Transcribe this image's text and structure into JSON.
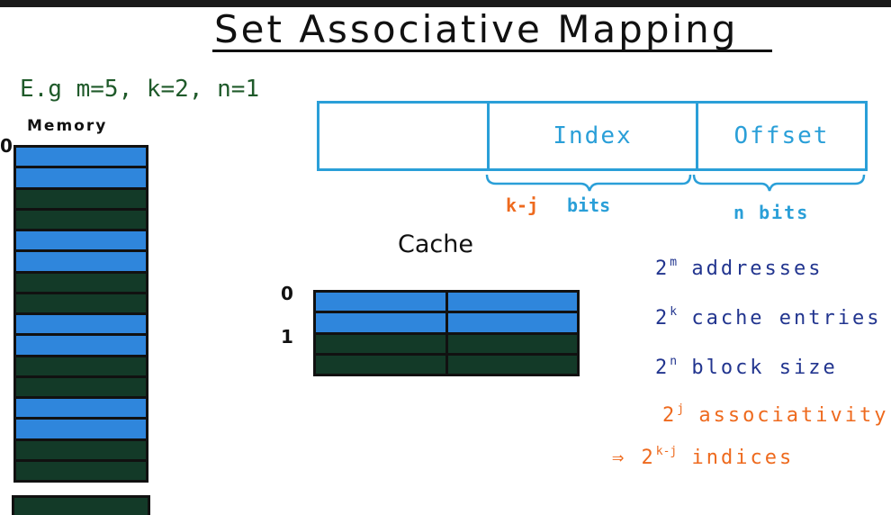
{
  "title": "Set Associative Mapping",
  "example": "E.g m=5, k=2, n=1",
  "memory": {
    "label": "Memory",
    "zero": "0",
    "rows": [
      "blue",
      "blue",
      "dark",
      "dark",
      "blue",
      "blue",
      "dark",
      "dark",
      "blue",
      "blue",
      "dark",
      "dark",
      "blue",
      "blue",
      "dark",
      "dark"
    ]
  },
  "address": {
    "tag": "",
    "index": "Index",
    "offset": "Offset",
    "index_bits_a": "k-j",
    "index_bits_b": "bits",
    "offset_bits": "n bits"
  },
  "cache": {
    "label": "Cache",
    "set0": "0",
    "set1": "1",
    "rows": [
      "blue",
      "blue",
      "dark",
      "dark"
    ]
  },
  "notes": {
    "addresses": {
      "base": "2",
      "exp": "m",
      "text": "addresses"
    },
    "entries": {
      "base": "2",
      "exp": "k",
      "text": "cache entries"
    },
    "block": {
      "base": "2",
      "exp": "n",
      "text": "block size"
    },
    "assoc": {
      "base": "2",
      "exp": "j",
      "text": "associativity"
    },
    "indices": {
      "arrow": "⇒",
      "base": "2",
      "exp": "k-j",
      "text": "indices"
    }
  },
  "colors": {
    "memory_blue": "#2f86dc",
    "memory_dark": "#133a28",
    "address_blue": "#2a9fd8",
    "note_navy": "#22358f",
    "note_orange": "#ee6a1e",
    "example_green": "#1f5a2a"
  }
}
